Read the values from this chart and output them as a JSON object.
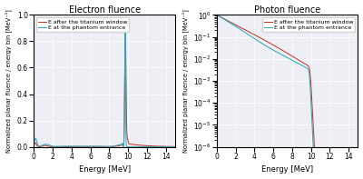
{
  "left_title": "Electron fluence",
  "right_title": "Photon fluence",
  "xlabel": "Energy [MeV]",
  "ylabel_left": "Normalized planar fluence / energy bin [MeV⁻¹]",
  "ylabel_right": "Normalized planar fluence / energy bin [MeV⁻¹]",
  "legend_label1": "E after the titanium window",
  "legend_label2": "E at the phantom entrance",
  "color_red": "#c0392b",
  "color_blue": "#2eaabc",
  "xlim": [
    0,
    15
  ],
  "ylim_left": [
    0,
    1.0
  ],
  "background_color": "#eeeef5"
}
